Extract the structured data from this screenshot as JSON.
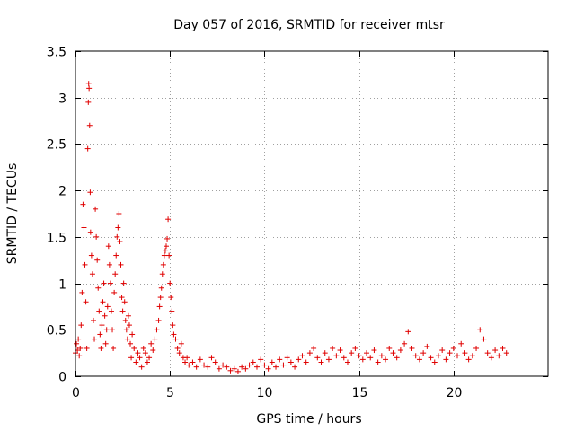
{
  "chart_data": {
    "type": "scatter",
    "title": "Day 057 of 2016, SRMTID for receiver mtsr",
    "xlabel": "GPS time / hours",
    "ylabel": "SRMTID / TECUs",
    "xlim": [
      0,
      25
    ],
    "ylim": [
      0,
      3.5
    ],
    "xticks": [
      0,
      5,
      10,
      15,
      20
    ],
    "xtick_labels": [
      "0",
      "5",
      "10",
      "15",
      "20"
    ],
    "yticks": [
      0,
      0.5,
      1,
      1.5,
      2,
      2.5,
      3,
      3.5
    ],
    "ytick_labels": [
      "0",
      "0.5",
      "1",
      "1.5",
      "2",
      "2.5",
      "3",
      "3.5"
    ],
    "grid": true,
    "marker": "+",
    "color": "#e00000",
    "series": [
      {
        "name": "SRMTID",
        "points": [
          [
            0.0,
            0.25
          ],
          [
            0.05,
            0.35
          ],
          [
            0.1,
            0.28
          ],
          [
            0.15,
            0.4
          ],
          [
            0.2,
            0.22
          ],
          [
            0.25,
            0.3
          ],
          [
            0.3,
            0.55
          ],
          [
            0.35,
            0.9
          ],
          [
            0.4,
            1.85
          ],
          [
            0.45,
            1.6
          ],
          [
            0.5,
            1.2
          ],
          [
            0.55,
            0.8
          ],
          [
            0.6,
            0.3
          ],
          [
            0.65,
            2.45
          ],
          [
            0.68,
            2.95
          ],
          [
            0.7,
            3.15
          ],
          [
            0.72,
            3.1
          ],
          [
            0.75,
            2.7
          ],
          [
            0.78,
            1.98
          ],
          [
            0.8,
            1.55
          ],
          [
            0.85,
            1.3
          ],
          [
            0.9,
            1.1
          ],
          [
            0.95,
            0.6
          ],
          [
            1.0,
            0.4
          ],
          [
            1.05,
            1.8
          ],
          [
            1.1,
            1.5
          ],
          [
            1.15,
            1.25
          ],
          [
            1.2,
            0.95
          ],
          [
            1.25,
            0.7
          ],
          [
            1.3,
            0.45
          ],
          [
            1.35,
            0.3
          ],
          [
            1.4,
            0.55
          ],
          [
            1.45,
            0.8
          ],
          [
            1.5,
            1.0
          ],
          [
            1.55,
            0.65
          ],
          [
            1.6,
            0.35
          ],
          [
            1.65,
            0.5
          ],
          [
            1.7,
            0.75
          ],
          [
            1.75,
            1.4
          ],
          [
            1.8,
            1.2
          ],
          [
            1.85,
            1.0
          ],
          [
            1.9,
            0.7
          ],
          [
            1.95,
            0.5
          ],
          [
            2.0,
            0.3
          ],
          [
            2.05,
            0.9
          ],
          [
            2.1,
            1.1
          ],
          [
            2.15,
            1.3
          ],
          [
            2.2,
            1.5
          ],
          [
            2.25,
            1.6
          ],
          [
            2.3,
            1.75
          ],
          [
            2.35,
            1.45
          ],
          [
            2.4,
            1.2
          ],
          [
            2.45,
            0.85
          ],
          [
            2.5,
            0.7
          ],
          [
            2.55,
            1.0
          ],
          [
            2.6,
            0.8
          ],
          [
            2.65,
            0.6
          ],
          [
            2.7,
            0.5
          ],
          [
            2.75,
            0.4
          ],
          [
            2.8,
            0.65
          ],
          [
            2.85,
            0.55
          ],
          [
            2.9,
            0.35
          ],
          [
            2.95,
            0.2
          ],
          [
            3.0,
            0.45
          ],
          [
            3.1,
            0.3
          ],
          [
            3.2,
            0.15
          ],
          [
            3.3,
            0.25
          ],
          [
            3.4,
            0.2
          ],
          [
            3.5,
            0.1
          ],
          [
            3.6,
            0.3
          ],
          [
            3.7,
            0.25
          ],
          [
            3.8,
            0.15
          ],
          [
            3.9,
            0.2
          ],
          [
            4.0,
            0.35
          ],
          [
            4.1,
            0.28
          ],
          [
            4.2,
            0.4
          ],
          [
            4.3,
            0.5
          ],
          [
            4.4,
            0.6
          ],
          [
            4.45,
            0.75
          ],
          [
            4.5,
            0.85
          ],
          [
            4.55,
            0.95
          ],
          [
            4.6,
            1.1
          ],
          [
            4.65,
            1.2
          ],
          [
            4.7,
            1.3
          ],
          [
            4.75,
            1.35
          ],
          [
            4.8,
            1.4
          ],
          [
            4.85,
            1.48
          ],
          [
            4.9,
            1.69
          ],
          [
            4.95,
            1.3
          ],
          [
            5.0,
            1.0
          ],
          [
            5.05,
            0.85
          ],
          [
            5.1,
            0.7
          ],
          [
            5.15,
            0.55
          ],
          [
            5.2,
            0.45
          ],
          [
            5.3,
            0.4
          ],
          [
            5.4,
            0.3
          ],
          [
            5.5,
            0.25
          ],
          [
            5.6,
            0.35
          ],
          [
            5.7,
            0.2
          ],
          [
            5.8,
            0.15
          ],
          [
            5.9,
            0.2
          ],
          [
            6.0,
            0.12
          ],
          [
            6.2,
            0.15
          ],
          [
            6.4,
            0.1
          ],
          [
            6.6,
            0.18
          ],
          [
            6.8,
            0.12
          ],
          [
            7.0,
            0.1
          ],
          [
            7.2,
            0.2
          ],
          [
            7.4,
            0.15
          ],
          [
            7.6,
            0.08
          ],
          [
            7.8,
            0.12
          ],
          [
            8.0,
            0.1
          ],
          [
            8.2,
            0.06
          ],
          [
            8.4,
            0.08
          ],
          [
            8.6,
            0.05
          ],
          [
            8.8,
            0.1
          ],
          [
            9.0,
            0.08
          ],
          [
            9.2,
            0.12
          ],
          [
            9.4,
            0.15
          ],
          [
            9.6,
            0.1
          ],
          [
            9.8,
            0.18
          ],
          [
            10.0,
            0.12
          ],
          [
            10.2,
            0.08
          ],
          [
            10.4,
            0.15
          ],
          [
            10.6,
            0.1
          ],
          [
            10.8,
            0.18
          ],
          [
            11.0,
            0.12
          ],
          [
            11.2,
            0.2
          ],
          [
            11.4,
            0.15
          ],
          [
            11.6,
            0.1
          ],
          [
            11.8,
            0.18
          ],
          [
            12.0,
            0.22
          ],
          [
            12.2,
            0.15
          ],
          [
            12.4,
            0.25
          ],
          [
            12.6,
            0.3
          ],
          [
            12.8,
            0.2
          ],
          [
            13.0,
            0.15
          ],
          [
            13.2,
            0.25
          ],
          [
            13.4,
            0.18
          ],
          [
            13.6,
            0.3
          ],
          [
            13.8,
            0.22
          ],
          [
            14.0,
            0.28
          ],
          [
            14.2,
            0.2
          ],
          [
            14.4,
            0.15
          ],
          [
            14.6,
            0.25
          ],
          [
            14.8,
            0.3
          ],
          [
            15.0,
            0.22
          ],
          [
            15.2,
            0.18
          ],
          [
            15.4,
            0.25
          ],
          [
            15.6,
            0.2
          ],
          [
            15.8,
            0.28
          ],
          [
            16.0,
            0.15
          ],
          [
            16.2,
            0.22
          ],
          [
            16.4,
            0.18
          ],
          [
            16.6,
            0.3
          ],
          [
            16.8,
            0.25
          ],
          [
            17.0,
            0.2
          ],
          [
            17.2,
            0.28
          ],
          [
            17.4,
            0.35
          ],
          [
            17.6,
            0.48
          ],
          [
            17.8,
            0.3
          ],
          [
            18.0,
            0.22
          ],
          [
            18.2,
            0.18
          ],
          [
            18.4,
            0.25
          ],
          [
            18.6,
            0.32
          ],
          [
            18.8,
            0.2
          ],
          [
            19.0,
            0.15
          ],
          [
            19.2,
            0.22
          ],
          [
            19.4,
            0.28
          ],
          [
            19.6,
            0.18
          ],
          [
            19.8,
            0.25
          ],
          [
            20.0,
            0.3
          ],
          [
            20.2,
            0.22
          ],
          [
            20.4,
            0.35
          ],
          [
            20.6,
            0.25
          ],
          [
            20.8,
            0.18
          ],
          [
            21.0,
            0.22
          ],
          [
            21.2,
            0.3
          ],
          [
            21.4,
            0.5
          ],
          [
            21.6,
            0.4
          ],
          [
            21.8,
            0.25
          ],
          [
            22.0,
            0.2
          ],
          [
            22.2,
            0.28
          ],
          [
            22.4,
            0.22
          ],
          [
            22.6,
            0.3
          ],
          [
            22.8,
            0.25
          ]
        ]
      }
    ]
  }
}
